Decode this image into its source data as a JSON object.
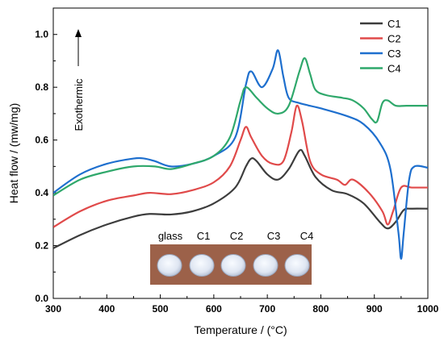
{
  "chart_data": {
    "type": "line",
    "xlabel": "Temperature / (°C)",
    "ylabel": "Heat flow / (mw/mg)",
    "annotation": "Exothermic",
    "xlim": [
      300,
      1000
    ],
    "ylim": [
      0.0,
      1.1
    ],
    "x_ticks": [
      300,
      400,
      500,
      600,
      700,
      800,
      900,
      1000
    ],
    "y_ticks": [
      0.0,
      0.2,
      0.4,
      0.6,
      0.8,
      1.0
    ],
    "legend_position": "top-right",
    "grid": false,
    "series": [
      {
        "name": "C1",
        "color": "#3d3d3d",
        "points": [
          [
            300,
            0.19
          ],
          [
            350,
            0.24
          ],
          [
            400,
            0.28
          ],
          [
            450,
            0.31
          ],
          [
            480,
            0.32
          ],
          [
            520,
            0.318
          ],
          [
            560,
            0.33
          ],
          [
            600,
            0.36
          ],
          [
            640,
            0.42
          ],
          [
            660,
            0.5
          ],
          [
            670,
            0.53
          ],
          [
            680,
            0.52
          ],
          [
            700,
            0.47
          ],
          [
            720,
            0.45
          ],
          [
            740,
            0.49
          ],
          [
            760,
            0.56
          ],
          [
            770,
            0.54
          ],
          [
            790,
            0.46
          ],
          [
            820,
            0.41
          ],
          [
            850,
            0.395
          ],
          [
            880,
            0.36
          ],
          [
            910,
            0.29
          ],
          [
            925,
            0.265
          ],
          [
            940,
            0.29
          ],
          [
            955,
            0.335
          ],
          [
            970,
            0.34
          ],
          [
            1000,
            0.34
          ]
        ]
      },
      {
        "name": "C2",
        "color": "#e04a4a",
        "points": [
          [
            300,
            0.27
          ],
          [
            350,
            0.33
          ],
          [
            400,
            0.37
          ],
          [
            450,
            0.39
          ],
          [
            480,
            0.4
          ],
          [
            520,
            0.395
          ],
          [
            560,
            0.41
          ],
          [
            600,
            0.44
          ],
          [
            630,
            0.5
          ],
          [
            650,
            0.6
          ],
          [
            660,
            0.65
          ],
          [
            670,
            0.61
          ],
          [
            690,
            0.54
          ],
          [
            710,
            0.51
          ],
          [
            730,
            0.52
          ],
          [
            745,
            0.63
          ],
          [
            755,
            0.73
          ],
          [
            765,
            0.67
          ],
          [
            780,
            0.52
          ],
          [
            800,
            0.47
          ],
          [
            830,
            0.45
          ],
          [
            845,
            0.43
          ],
          [
            860,
            0.45
          ],
          [
            890,
            0.4
          ],
          [
            915,
            0.33
          ],
          [
            925,
            0.28
          ],
          [
            935,
            0.33
          ],
          [
            950,
            0.42
          ],
          [
            970,
            0.42
          ],
          [
            1000,
            0.42
          ]
        ]
      },
      {
        "name": "C3",
        "color": "#1e6fce",
        "points": [
          [
            300,
            0.4
          ],
          [
            350,
            0.47
          ],
          [
            400,
            0.51
          ],
          [
            450,
            0.53
          ],
          [
            470,
            0.53
          ],
          [
            490,
            0.52
          ],
          [
            520,
            0.5
          ],
          [
            560,
            0.51
          ],
          [
            600,
            0.54
          ],
          [
            640,
            0.61
          ],
          [
            660,
            0.81
          ],
          [
            670,
            0.86
          ],
          [
            690,
            0.8
          ],
          [
            710,
            0.87
          ],
          [
            720,
            0.94
          ],
          [
            730,
            0.84
          ],
          [
            740,
            0.76
          ],
          [
            760,
            0.74
          ],
          [
            800,
            0.72
          ],
          [
            850,
            0.69
          ],
          [
            880,
            0.66
          ],
          [
            910,
            0.59
          ],
          [
            930,
            0.49
          ],
          [
            945,
            0.25
          ],
          [
            950,
            0.15
          ],
          [
            955,
            0.25
          ],
          [
            965,
            0.45
          ],
          [
            975,
            0.5
          ],
          [
            1000,
            0.495
          ]
        ]
      },
      {
        "name": "C4",
        "color": "#2fa86b",
        "points": [
          [
            300,
            0.39
          ],
          [
            350,
            0.45
          ],
          [
            400,
            0.48
          ],
          [
            450,
            0.5
          ],
          [
            490,
            0.5
          ],
          [
            520,
            0.49
          ],
          [
            560,
            0.51
          ],
          [
            600,
            0.54
          ],
          [
            630,
            0.61
          ],
          [
            650,
            0.75
          ],
          [
            660,
            0.8
          ],
          [
            680,
            0.76
          ],
          [
            700,
            0.72
          ],
          [
            720,
            0.7
          ],
          [
            740,
            0.73
          ],
          [
            760,
            0.86
          ],
          [
            770,
            0.91
          ],
          [
            780,
            0.85
          ],
          [
            790,
            0.79
          ],
          [
            810,
            0.77
          ],
          [
            840,
            0.76
          ],
          [
            860,
            0.75
          ],
          [
            880,
            0.72
          ],
          [
            895,
            0.68
          ],
          [
            905,
            0.67
          ],
          [
            915,
            0.74
          ],
          [
            925,
            0.75
          ],
          [
            940,
            0.73
          ],
          [
            960,
            0.73
          ],
          [
            1000,
            0.73
          ]
        ]
      }
    ]
  },
  "photo_inset": {
    "labels": [
      "glass",
      "C1",
      "C2",
      "C3",
      "C4"
    ],
    "background_color": "#9c6149",
    "disc_color": "#e5eaf4"
  }
}
